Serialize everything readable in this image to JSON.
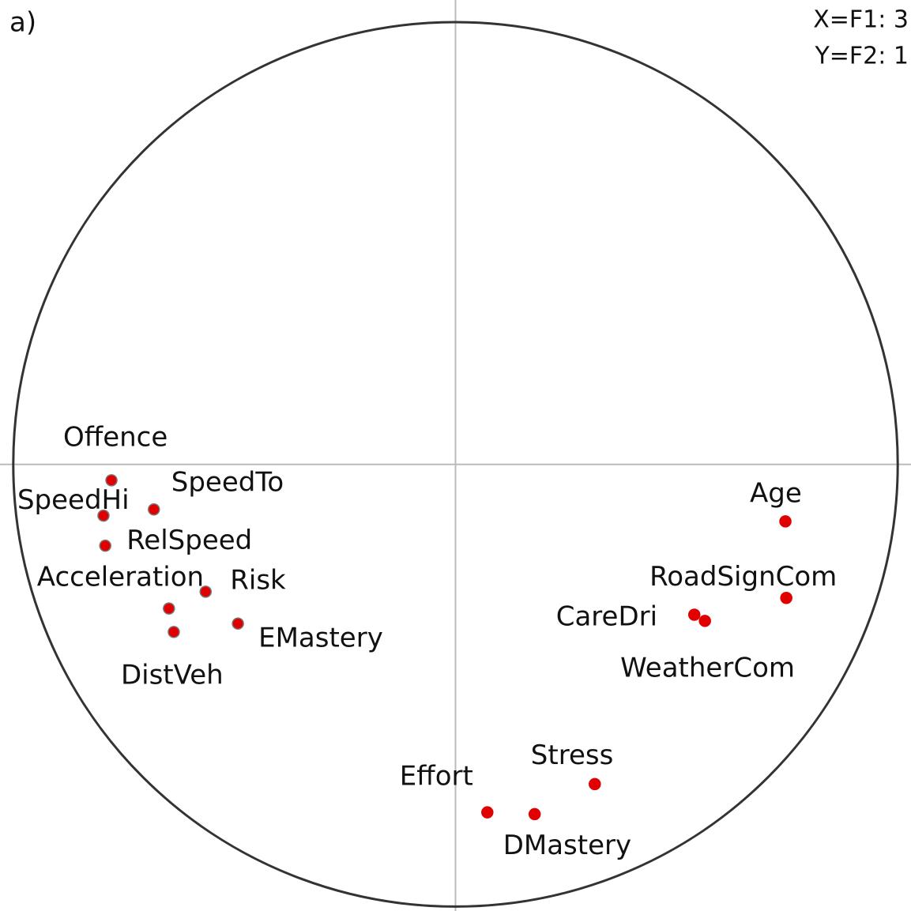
{
  "chart_data": {
    "type": "scatter",
    "labels": [
      "Offence",
      "SpeedTo",
      "SpeedHi",
      "RelSpeed",
      "Risk",
      "Acceleration",
      "DistVeh",
      "EMastery",
      "Age",
      "RoadSignCom",
      "CareDri",
      "WeatherCom",
      "Stress",
      "Effort",
      "DMastery"
    ],
    "x": [
      -0.778,
      -0.682,
      -0.796,
      -0.792,
      -0.565,
      -0.648,
      -0.637,
      -0.492,
      0.746,
      0.748,
      0.54,
      0.564,
      0.315,
      0.072,
      0.179
    ],
    "values": [
      -0.036,
      -0.102,
      -0.116,
      -0.184,
      -0.288,
      -0.326,
      -0.379,
      -0.36,
      -0.129,
      -0.302,
      -0.34,
      -0.354,
      -0.723,
      -0.787,
      -0.791
    ],
    "color": "#e00000",
    "xlim": [
      -1.03,
      1.03
    ],
    "ylim": [
      -1.01,
      1.05
    ],
    "annotations": [
      "a)",
      "X=F1: 3",
      "Y=F2: 1"
    ]
  }
}
